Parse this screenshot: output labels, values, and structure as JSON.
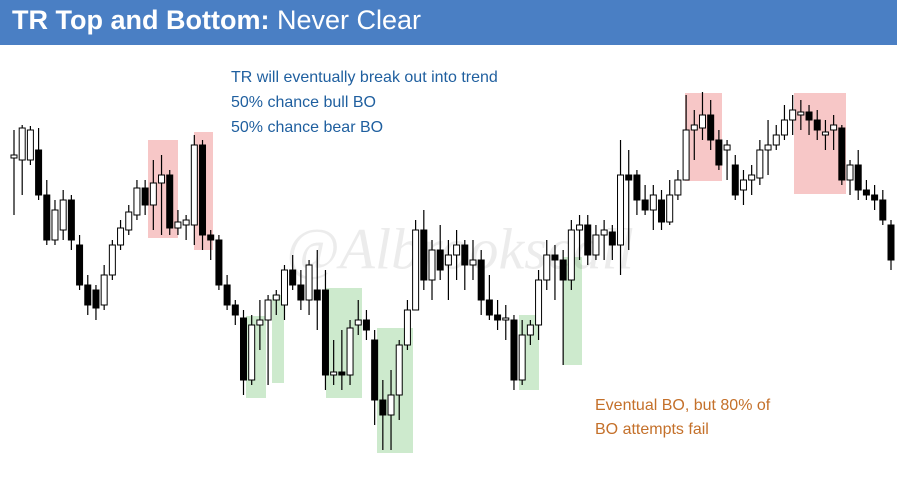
{
  "chart_data": {
    "type": "candlestick",
    "title_bold": "TR Top and Bottom:",
    "title_rest": "Never Clear",
    "annotations_top": [
      "TR will eventually break out into trend",
      "50% chance bull BO",
      "50% chance bear BO"
    ],
    "annotations_bottom": [
      "Eventual BO, but 80% of",
      "BO attempts fail"
    ],
    "watermark": "@Albrookscall",
    "ylim": [
      0,
      434
    ],
    "up_color": "#ffffff",
    "down_color": "#000000",
    "open": [
      321,
      319,
      319,
      329,
      284,
      239,
      249,
      279,
      234,
      194,
      189,
      174,
      204,
      234,
      249,
      264,
      291,
      274,
      296,
      304,
      251,
      254,
      254,
      334,
      244,
      239,
      194,
      174,
      161,
      99,
      154,
      159,
      179,
      174,
      209,
      194,
      179,
      189,
      189,
      104,
      107,
      104,
      154,
      159,
      139,
      79,
      64,
      84,
      134,
      169,
      249,
      199,
      229,
      214,
      224,
      234,
      214,
      219,
      179,
      164,
      159,
      159,
      99,
      144,
      154,
      199,
      224,
      219,
      199,
      249,
      254,
      224,
      244,
      247,
      234,
      304,
      304,
      279,
      269,
      279,
      257,
      284,
      299,
      349,
      351,
      364,
      339,
      329,
      314,
      289,
      299,
      301,
      329,
      334,
      344,
      359,
      364,
      367,
      359,
      344,
      349,
      351,
      299,
      314,
      289,
      284,
      279,
      254
    ],
    "high": [
      349,
      354,
      353,
      351,
      299,
      279,
      289,
      284,
      244,
      204,
      194,
      214,
      239,
      259,
      274,
      299,
      299,
      319,
      324,
      309,
      269,
      264,
      344,
      339,
      249,
      244,
      204,
      179,
      169,
      164,
      179,
      184,
      189,
      214,
      224,
      209,
      219,
      229,
      209,
      139,
      149,
      159,
      179,
      169,
      149,
      99,
      109,
      139,
      179,
      259,
      269,
      239,
      254,
      239,
      249,
      239,
      239,
      229,
      204,
      179,
      174,
      164,
      159,
      159,
      209,
      239,
      234,
      229,
      259,
      264,
      264,
      254,
      259,
      254,
      339,
      329,
      309,
      294,
      294,
      289,
      299,
      309,
      384,
      369,
      387,
      379,
      349,
      339,
      324,
      309,
      314,
      339,
      359,
      354,
      374,
      384,
      379,
      374,
      369,
      359,
      364,
      354,
      319,
      329,
      299,
      294,
      289,
      259
    ],
    "low": [
      264,
      284,
      314,
      279,
      234,
      234,
      239,
      229,
      189,
      164,
      159,
      169,
      199,
      229,
      244,
      259,
      264,
      249,
      244,
      244,
      244,
      239,
      234,
      229,
      219,
      189,
      169,
      154,
      84,
      94,
      129,
      94,
      164,
      159,
      189,
      169,
      164,
      149,
      89,
      94,
      89,
      94,
      144,
      139,
      54,
      29,
      29,
      59,
      129,
      169,
      189,
      179,
      199,
      179,
      199,
      189,
      199,
      164,
      159,
      149,
      139,
      89,
      94,
      134,
      139,
      189,
      179,
      114,
      189,
      219,
      214,
      219,
      219,
      219,
      204,
      229,
      264,
      264,
      249,
      249,
      254,
      279,
      299,
      319,
      339,
      329,
      309,
      299,
      279,
      274,
      284,
      294,
      304,
      329,
      339,
      344,
      349,
      344,
      339,
      329,
      329,
      294,
      284,
      279,
      279,
      269,
      254,
      209
    ],
    "close": [
      324,
      351,
      349,
      284,
      239,
      269,
      279,
      239,
      194,
      174,
      171,
      204,
      234,
      251,
      267,
      291,
      274,
      296,
      304,
      251,
      257,
      259,
      334,
      244,
      239,
      194,
      174,
      164,
      99,
      154,
      159,
      179,
      184,
      209,
      194,
      179,
      214,
      179,
      104,
      107,
      104,
      151,
      159,
      149,
      79,
      64,
      84,
      134,
      169,
      249,
      199,
      229,
      209,
      224,
      234,
      214,
      219,
      179,
      164,
      159,
      161,
      99,
      144,
      154,
      199,
      224,
      219,
      199,
      249,
      254,
      224,
      244,
      249,
      234,
      304,
      299,
      279,
      269,
      284,
      257,
      284,
      299,
      349,
      354,
      364,
      339,
      314,
      334,
      284,
      299,
      304,
      329,
      334,
      344,
      359,
      369,
      367,
      359,
      349,
      347,
      354,
      299,
      314,
      289,
      284,
      279,
      259,
      219
    ]
  }
}
